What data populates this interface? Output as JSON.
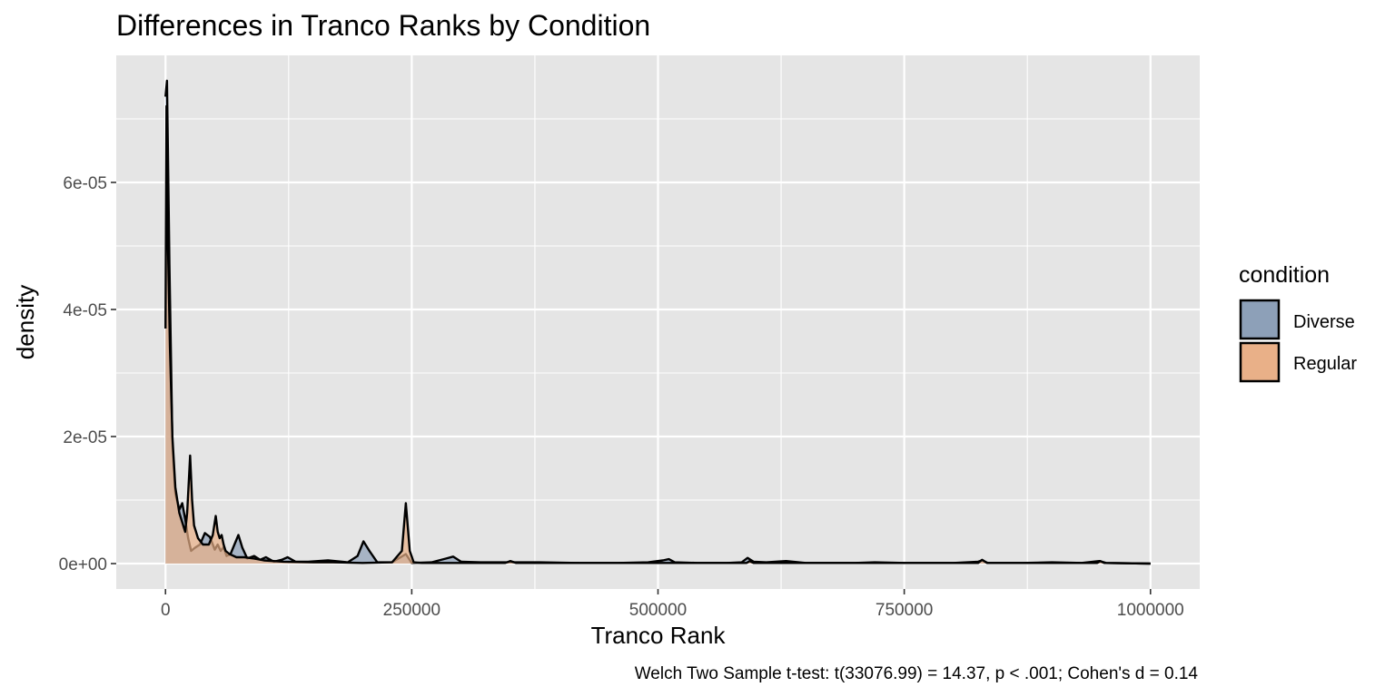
{
  "chart_data": {
    "type": "area",
    "title": "Differences in Tranco Ranks by Condition",
    "xlabel": "Tranco Rank",
    "ylabel": "density",
    "caption": "Welch Two Sample t-test: t(33076.99) = 14.37, p < .001; Cohen's d = 0.14",
    "xlim": [
      -50000,
      1050000
    ],
    "ylim": [
      -4e-06,
      8e-05
    ],
    "x_ticks": [
      0,
      250000,
      500000,
      750000,
      1000000
    ],
    "x_tick_labels": [
      "0",
      "250000",
      "500000",
      "750000",
      "1000000"
    ],
    "y_ticks": [
      0,
      2e-05,
      4e-05,
      6e-05
    ],
    "y_tick_labels": [
      "0e+00",
      "2e-05",
      "4e-05",
      "6e-05"
    ],
    "grid": true,
    "legend": {
      "title": "condition",
      "position": "right",
      "entries": [
        "Diverse",
        "Regular"
      ]
    },
    "colors": {
      "Diverse": "#8da0b8",
      "Regular": "#e9b088",
      "panel": "#e5e5e5",
      "grid": "#ffffff",
      "outline": "#000000"
    },
    "series": [
      {
        "name": "Diverse",
        "x": [
          0,
          1500,
          4000,
          7000,
          10000,
          14000,
          17000,
          20000,
          23000,
          26000,
          30000,
          35000,
          40000,
          45000,
          50000,
          53000,
          56000,
          59000,
          62000,
          66000,
          70000,
          74000,
          78000,
          83000,
          90000,
          96000,
          102000,
          110000,
          118000,
          124000,
          132000,
          145000,
          165000,
          185000,
          195000,
          201000,
          207000,
          215000,
          230000,
          244000,
          250000,
          270000,
          285000,
          292000,
          300000,
          320000,
          340000,
          380000,
          420000,
          460000,
          490000,
          505000,
          511000,
          517000,
          540000,
          570000,
          585000,
          591000,
          597000,
          610000,
          630000,
          650000,
          700000,
          720000,
          750000,
          800000,
          825000,
          829000,
          835000,
          870000,
          900000,
          930000,
          948000,
          955000,
          1000000
        ],
        "y": [
          7.35e-05,
          7.6e-05,
          4.7e-05,
          1.9e-05,
          1.1e-05,
          8.5e-06,
          9.5e-06,
          7e-06,
          4e-06,
          2e-06,
          2.5e-06,
          3e-06,
          4.8e-06,
          4.2e-06,
          2.2e-06,
          3e-06,
          2e-06,
          2.6e-06,
          1.2e-06,
          1.5e-06,
          3e-06,
          4.5e-06,
          2.5e-06,
          8e-07,
          1.2e-06,
          6e-07,
          1e-06,
          3e-07,
          6e-07,
          1e-06,
          3e-07,
          3e-07,
          5e-07,
          2e-07,
          1.2e-06,
          3.5e-06,
          2e-06,
          2e-07,
          2e-07,
          1.5e-06,
          1e-07,
          2e-07,
          8e-07,
          1.1e-06,
          3e-07,
          2e-07,
          2e-07,
          2e-07,
          1e-07,
          1e-07,
          2e-07,
          5e-07,
          7e-07,
          2e-07,
          1e-07,
          1e-07,
          2e-07,
          9e-07,
          3e-07,
          2e-07,
          4e-07,
          1e-07,
          1e-07,
          2e-07,
          1e-07,
          1e-07,
          3e-07,
          5e-07,
          1e-07,
          1e-07,
          2e-07,
          1e-07,
          4e-07,
          1e-07,
          0.0
        ]
      },
      {
        "name": "Regular",
        "x": [
          0,
          1000,
          2500,
          4500,
          7000,
          10000,
          14000,
          17000,
          20000,
          22000,
          25000,
          27000,
          29000,
          33000,
          38000,
          44000,
          48000,
          51000,
          53000,
          55000,
          57000,
          59000,
          61000,
          65000,
          72000,
          80000,
          90000,
          100000,
          120000,
          150000,
          170000,
          200000,
          230000,
          240000,
          244000,
          248000,
          252000,
          260000,
          300000,
          345000,
          350000,
          356000,
          400000,
          500000,
          590000,
          593000,
          597000,
          700000,
          825000,
          829000,
          834000,
          900000,
          946000,
          949000,
          953000,
          1000000
        ],
        "y": [
          3.7e-05,
          7.2e-05,
          5e-05,
          3.4e-05,
          2e-05,
          1.2e-05,
          8e-06,
          6.5e-06,
          5e-06,
          8e-06,
          1.7e-05,
          1e-05,
          6e-06,
          4e-06,
          3e-06,
          3e-06,
          4.5e-06,
          7.5e-06,
          5e-06,
          4e-06,
          4.5e-06,
          3e-06,
          2e-06,
          1.5e-06,
          1e-06,
          1e-06,
          8e-07,
          5e-07,
          3e-07,
          2e-07,
          2e-07,
          1e-07,
          2e-07,
          2e-06,
          9.5e-06,
          2e-06,
          2e-07,
          1e-07,
          1e-07,
          1e-07,
          4e-07,
          1e-07,
          1e-07,
          1e-07,
          1e-07,
          4e-07,
          1e-07,
          1e-07,
          1e-07,
          6e-07,
          1e-07,
          1e-07,
          1e-07,
          4e-07,
          1e-07,
          0.0
        ]
      }
    ]
  }
}
